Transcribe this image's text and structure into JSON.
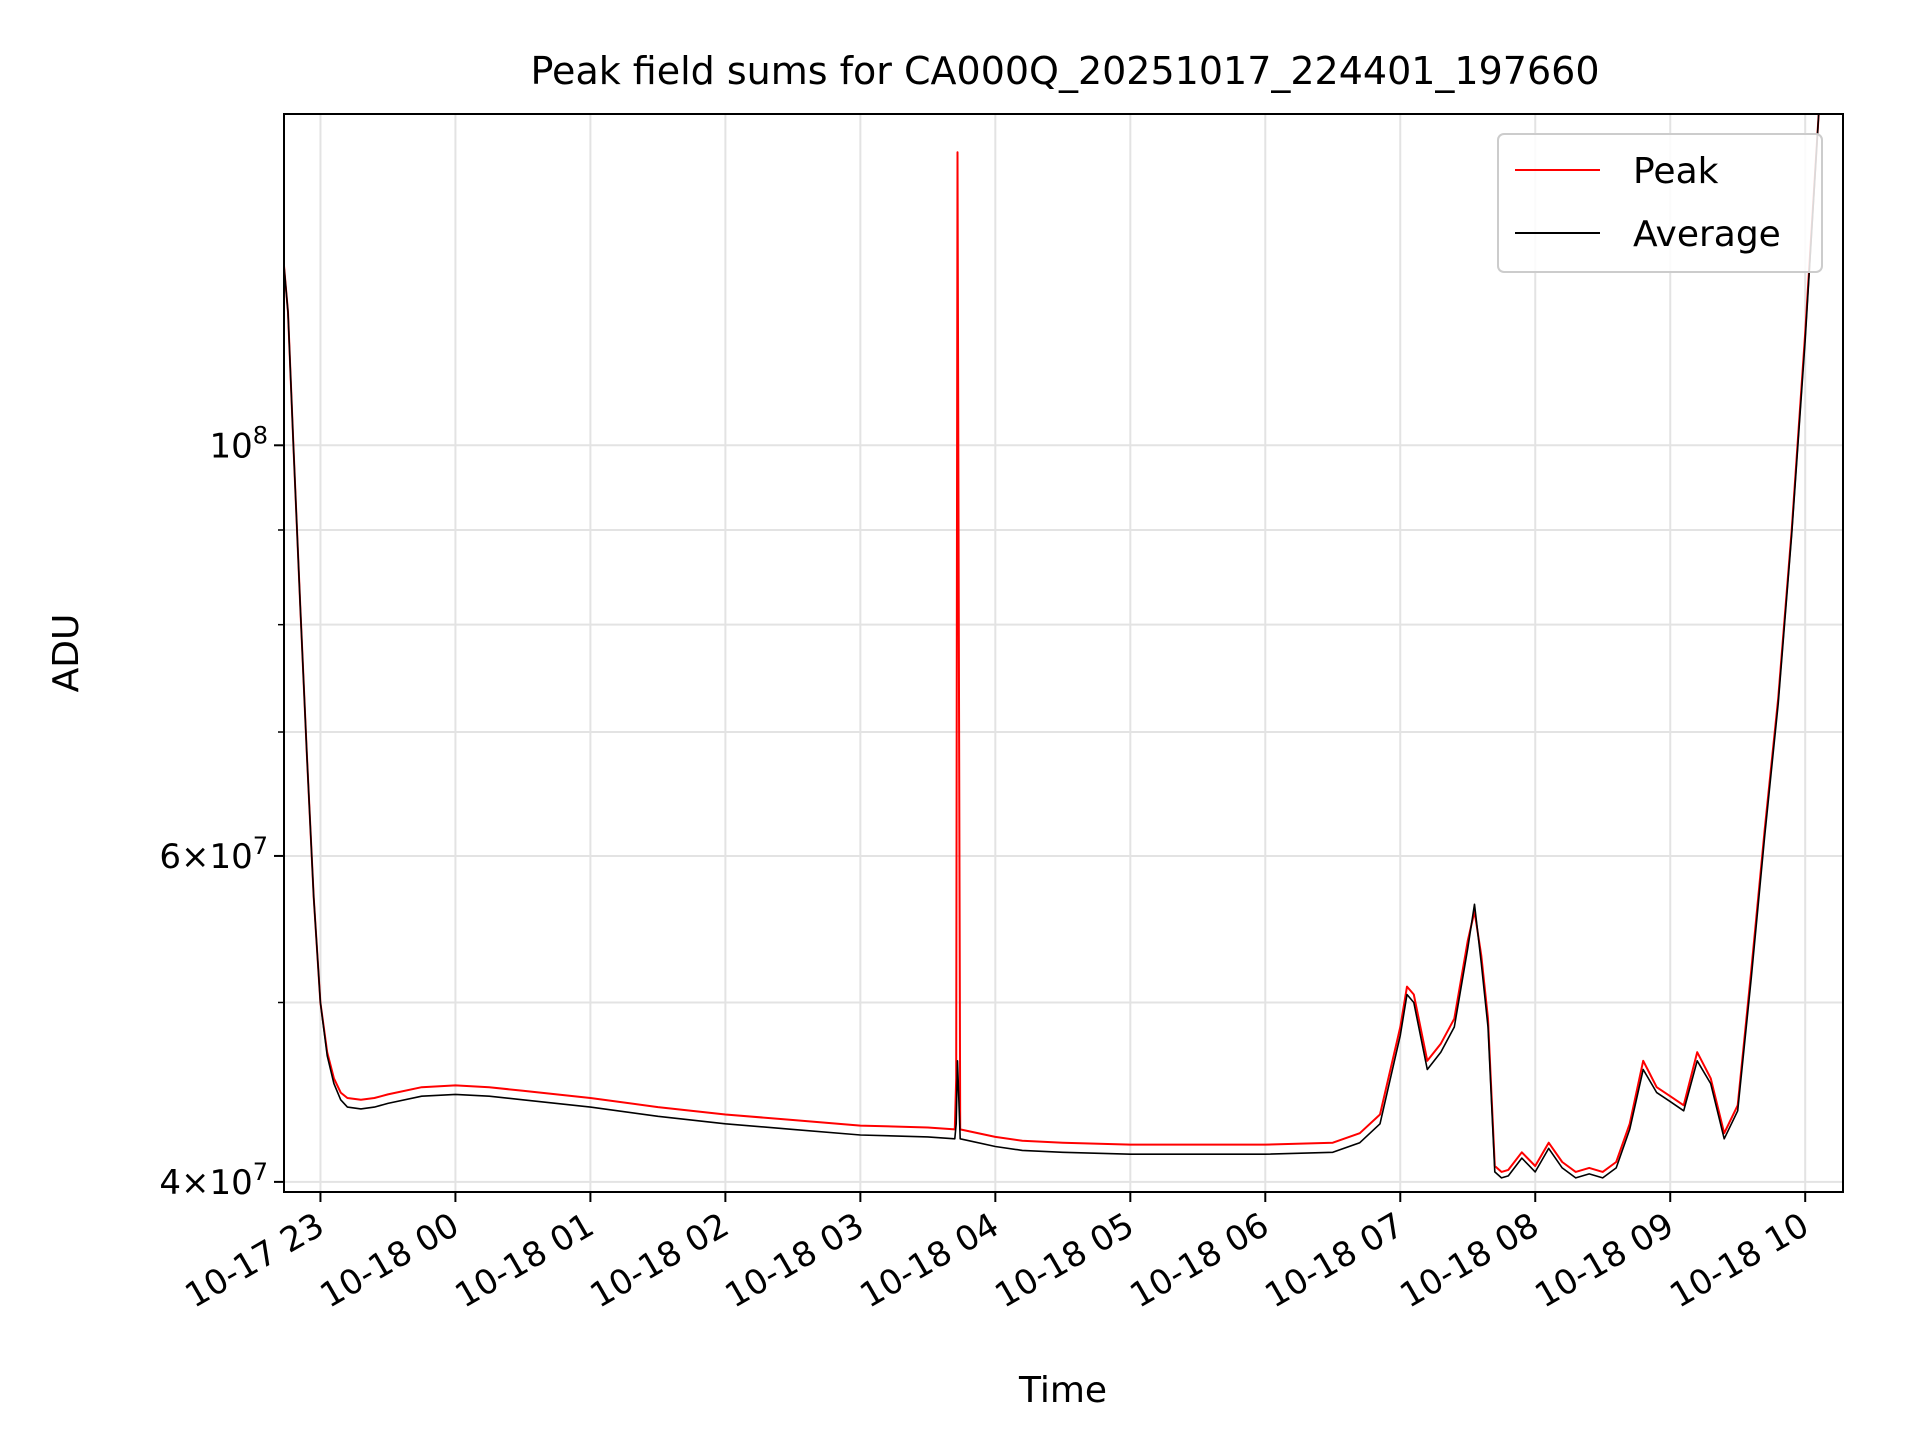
{
  "chart_data": {
    "type": "line",
    "title": "Peak field sums for CA000Q_20251017_224401_197660",
    "xlabel": "Time",
    "ylabel": "ADU",
    "yscale": "log",
    "ylim": [
      39500000,
      151000000
    ],
    "xlim_hours_from_2025_10_17_22_00": [
      0.73,
      12.28
    ],
    "grid": true,
    "legend_position": "upper right",
    "x_ticks": [
      {
        "hour": 1,
        "label": "10-17 23"
      },
      {
        "hour": 2,
        "label": "10-18 00"
      },
      {
        "hour": 3,
        "label": "10-18 01"
      },
      {
        "hour": 4,
        "label": "10-18 02"
      },
      {
        "hour": 5,
        "label": "10-18 03"
      },
      {
        "hour": 6,
        "label": "10-18 04"
      },
      {
        "hour": 7,
        "label": "10-18 05"
      },
      {
        "hour": 8,
        "label": "10-18 06"
      },
      {
        "hour": 9,
        "label": "10-18 07"
      },
      {
        "hour": 10,
        "label": "10-18 08"
      },
      {
        "hour": 11,
        "label": "10-18 09"
      },
      {
        "hour": 12,
        "label": "10-18 10"
      }
    ],
    "y_major_ticks": [
      {
        "value": 40000000,
        "mantissa": "4",
        "exponent": "7"
      },
      {
        "value": 60000000,
        "mantissa": "6",
        "exponent": "7"
      },
      {
        "value": 100000000,
        "mantissa": "10",
        "exponent": "8"
      }
    ],
    "y_minor_ticks": [
      50000000,
      70000000,
      80000000,
      90000000
    ],
    "times_sep": "×",
    "series": [
      {
        "name": "Peak",
        "color": "#ff0000",
        "x": [
          0.73,
          0.76,
          0.8,
          0.85,
          0.9,
          0.95,
          1.0,
          1.05,
          1.1,
          1.15,
          1.2,
          1.3,
          1.4,
          1.5,
          1.75,
          2.0,
          2.25,
          2.5,
          3.0,
          3.5,
          4.0,
          4.5,
          5.0,
          5.5,
          5.7,
          5.71,
          5.72,
          5.74,
          6.0,
          6.2,
          6.5,
          7.0,
          8.0,
          8.5,
          8.7,
          8.85,
          9.0,
          9.05,
          9.1,
          9.2,
          9.3,
          9.4,
          9.5,
          9.55,
          9.6,
          9.65,
          9.7,
          9.75,
          9.8,
          9.9,
          10.0,
          10.1,
          10.2,
          10.3,
          10.4,
          10.5,
          10.6,
          10.7,
          10.8,
          10.9,
          11.0,
          11.1,
          11.2,
          11.3,
          11.4,
          11.5,
          11.6,
          11.7,
          11.8,
          11.9,
          12.0,
          12.1,
          12.2,
          12.28
        ],
        "y": [
          125000000,
          118000000,
          100000000,
          82000000,
          68000000,
          57000000,
          50000000,
          47000000,
          45500000,
          44700000,
          44400000,
          44300000,
          44400000,
          44600000,
          45000000,
          45100000,
          45000000,
          44800000,
          44400000,
          43900000,
          43500000,
          43200000,
          42900000,
          42800000,
          42700000,
          45500000,
          144000000,
          42700000,
          42300000,
          42100000,
          42000000,
          41900000,
          41900000,
          42000000,
          42500000,
          43500000,
          48500000,
          51000000,
          50500000,
          46500000,
          47500000,
          49000000,
          54000000,
          56000000,
          53000000,
          49000000,
          40800000,
          40500000,
          40600000,
          41500000,
          40800000,
          42000000,
          41000000,
          40500000,
          40700000,
          40500000,
          41000000,
          43000000,
          46500000,
          45000000,
          44500000,
          44000000,
          47000000,
          45500000,
          42500000,
          44000000,
          52000000,
          62000000,
          73000000,
          90000000,
          115000000,
          151000000,
          151000000,
          151000000
        ]
      },
      {
        "name": "Average",
        "color": "#000000",
        "x": [
          0.73,
          0.76,
          0.8,
          0.85,
          0.9,
          0.95,
          1.0,
          1.05,
          1.1,
          1.15,
          1.2,
          1.3,
          1.4,
          1.5,
          1.75,
          2.0,
          2.25,
          2.5,
          3.0,
          3.5,
          4.0,
          4.5,
          5.0,
          5.5,
          5.7,
          5.71,
          5.72,
          5.74,
          6.0,
          6.2,
          6.5,
          7.0,
          8.0,
          8.5,
          8.7,
          8.85,
          9.0,
          9.05,
          9.1,
          9.2,
          9.3,
          9.4,
          9.5,
          9.55,
          9.6,
          9.65,
          9.7,
          9.75,
          9.8,
          9.9,
          10.0,
          10.1,
          10.2,
          10.3,
          10.4,
          10.5,
          10.6,
          10.7,
          10.8,
          10.9,
          11.0,
          11.1,
          11.2,
          11.3,
          11.4,
          11.5,
          11.6,
          11.7,
          11.8,
          11.9,
          12.0,
          12.1,
          12.2,
          12.28
        ],
        "y": [
          125000000,
          118000000,
          100000000,
          82000000,
          68000000,
          57000000,
          50000000,
          46800000,
          45200000,
          44300000,
          43900000,
          43800000,
          43900000,
          44100000,
          44500000,
          44600000,
          44500000,
          44300000,
          43900000,
          43400000,
          43000000,
          42700000,
          42400000,
          42300000,
          42200000,
          43000000,
          46500000,
          42200000,
          41800000,
          41600000,
          41500000,
          41400000,
          41400000,
          41500000,
          42000000,
          43000000,
          48000000,
          50500000,
          50000000,
          46000000,
          47000000,
          48500000,
          53500000,
          56500000,
          52500000,
          48500000,
          40500000,
          40200000,
          40300000,
          41200000,
          40500000,
          41700000,
          40700000,
          40200000,
          40400000,
          40200000,
          40700000,
          42700000,
          46000000,
          44700000,
          44200000,
          43700000,
          46500000,
          45200000,
          42200000,
          43700000,
          51500000,
          61500000,
          72500000,
          89500000,
          114000000,
          151000000,
          151000000,
          151000000
        ]
      }
    ]
  }
}
